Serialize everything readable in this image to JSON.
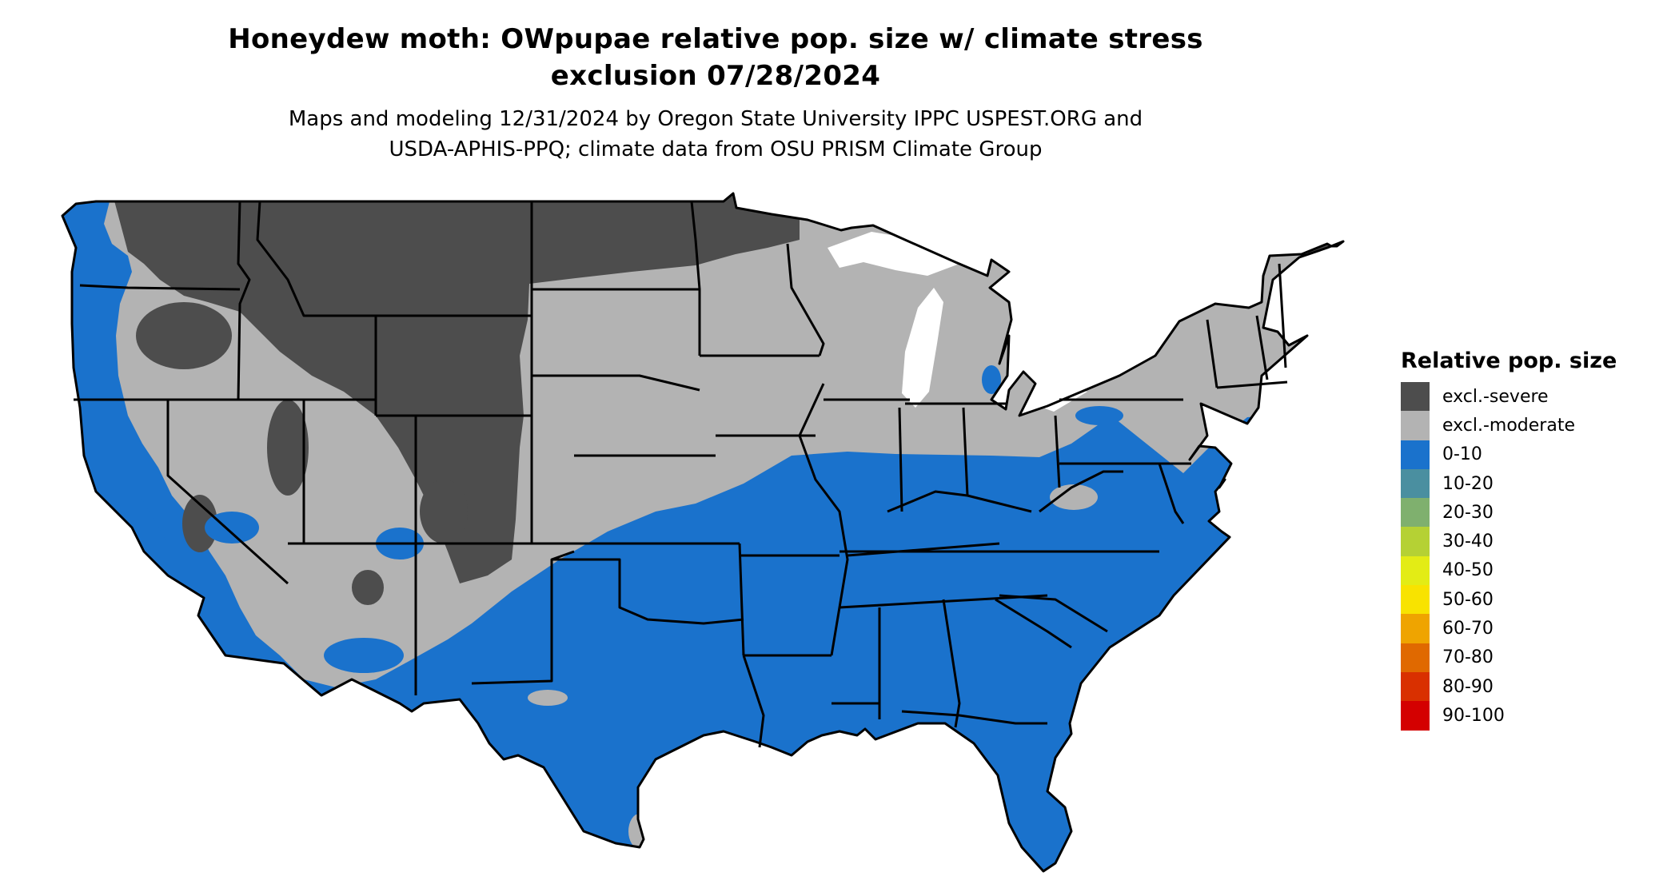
{
  "title": {
    "line1": "Honeydew moth: OWpupae relative pop. size w/ climate stress",
    "line2": "exclusion 07/28/2024"
  },
  "subtitle": {
    "line1": "Maps and modeling 12/31/2024 by Oregon State University IPPC USPEST.ORG and",
    "line2": "USDA-APHIS-PPQ; climate data from OSU PRISM Climate Group"
  },
  "map": {
    "region": "contiguous-united-states",
    "colors": {
      "severe": "#4d4d4d",
      "moderate": "#b3b3b3",
      "low": "#1a72cc",
      "border": "#000000"
    }
  },
  "legend": {
    "title": "Relative pop. size",
    "items": [
      {
        "label": "excl.-severe",
        "color": "#4d4d4d"
      },
      {
        "label": "excl.-moderate",
        "color": "#b3b3b3"
      },
      {
        "label": "0-10",
        "color": "#1a72cc"
      },
      {
        "label": "10-20",
        "color": "#4a8fa0"
      },
      {
        "label": "20-30",
        "color": "#7fb06e"
      },
      {
        "label": "30-40",
        "color": "#b5d134"
      },
      {
        "label": "40-50",
        "color": "#e3ec15"
      },
      {
        "label": "50-60",
        "color": "#f8e300"
      },
      {
        "label": "60-70",
        "color": "#efa400"
      },
      {
        "label": "70-80",
        "color": "#e06900"
      },
      {
        "label": "80-90",
        "color": "#d93000"
      },
      {
        "label": "90-100",
        "color": "#d40000"
      }
    ]
  }
}
